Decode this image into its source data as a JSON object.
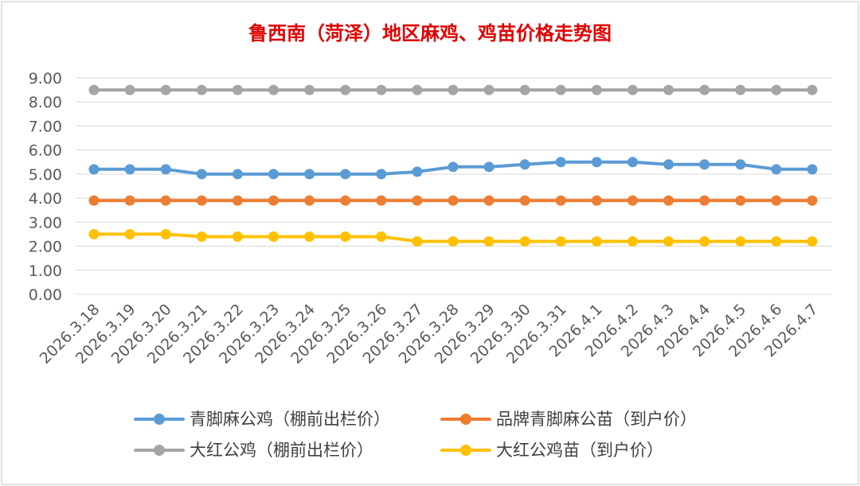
{
  "chart_data": {
    "type": "line",
    "title": "鲁西南（菏泽）地区麻鸡、鸡苗价格走势图",
    "xlabel": "",
    "ylabel": "",
    "ylim": [
      0,
      9
    ],
    "ytick_step": 1,
    "y_decimals": 2,
    "grid": true,
    "legend_position": "bottom",
    "categories": [
      "2026.3.18",
      "2026.3.19",
      "2026.3.20",
      "2026.3.21",
      "2026.3.22",
      "2026.3.23",
      "2026.3.24",
      "2026.3.25",
      "2026.3.26",
      "2026.3.27",
      "2026.3.28",
      "2026.3.29",
      "2026.3.30",
      "2026.3.31",
      "2026.4.1",
      "2026.4.2",
      "2026.4.3",
      "2026.4.4",
      "2026.4.5",
      "2026.4.6",
      "2026.4.7"
    ],
    "series": [
      {
        "name": "青脚麻公鸡（棚前出栏价）",
        "color": "#5b9bd5",
        "values": [
          5.2,
          5.2,
          5.2,
          5.0,
          5.0,
          5.0,
          5.0,
          5.0,
          5.0,
          5.1,
          5.3,
          5.3,
          5.4,
          5.5,
          5.5,
          5.5,
          5.4,
          5.4,
          5.4,
          5.2,
          5.2
        ]
      },
      {
        "name": "品牌青脚麻公苗（到户价）",
        "color": "#ed7d31",
        "values": [
          3.9,
          3.9,
          3.9,
          3.9,
          3.9,
          3.9,
          3.9,
          3.9,
          3.9,
          3.9,
          3.9,
          3.9,
          3.9,
          3.9,
          3.9,
          3.9,
          3.9,
          3.9,
          3.9,
          3.9,
          3.9
        ]
      },
      {
        "name": "大红公鸡（棚前出栏价）",
        "color": "#a5a5a5",
        "values": [
          8.5,
          8.5,
          8.5,
          8.5,
          8.5,
          8.5,
          8.5,
          8.5,
          8.5,
          8.5,
          8.5,
          8.5,
          8.5,
          8.5,
          8.5,
          8.5,
          8.5,
          8.5,
          8.5,
          8.5,
          8.5
        ]
      },
      {
        "name": "大红公鸡苗（到户价）",
        "color": "#ffc000",
        "values": [
          2.5,
          2.5,
          2.5,
          2.4,
          2.4,
          2.4,
          2.4,
          2.4,
          2.4,
          2.2,
          2.2,
          2.2,
          2.2,
          2.2,
          2.2,
          2.2,
          2.2,
          2.2,
          2.2,
          2.2,
          2.2
        ]
      }
    ]
  }
}
